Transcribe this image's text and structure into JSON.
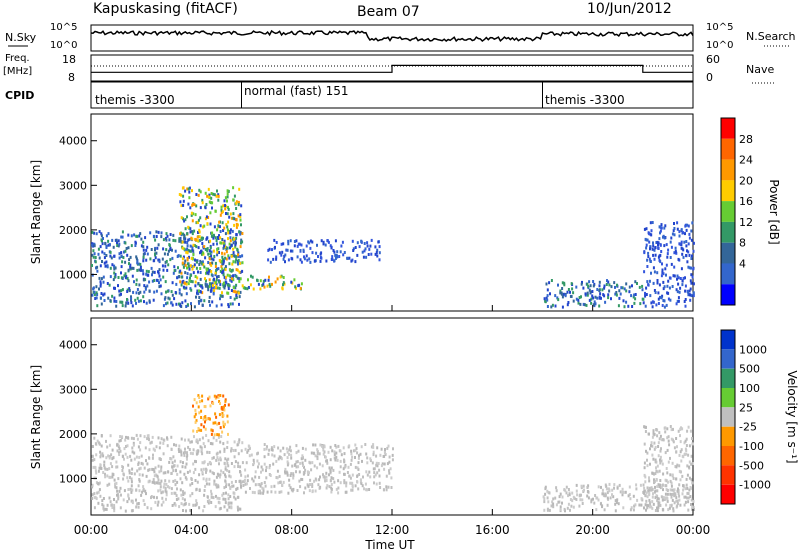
{
  "header": {
    "title": "Kapuskasing (fitACF)",
    "beam": "Beam 07",
    "date": "10/Jun/2012"
  },
  "chart_data": {
    "type": "heatmap",
    "title": "Kapuskasing (fitACF)",
    "xlabel": "Time UT",
    "x_ticks": [
      "00:00",
      "04:00",
      "08:00",
      "12:00",
      "16:00",
      "20:00",
      "00:00"
    ],
    "xlim_hours": [
      0,
      24
    ],
    "panels": [
      {
        "name": "noise",
        "left_label": "N.Sky",
        "right_label": "N.Search",
        "left_ticks": [
          "10^5",
          "10^0"
        ],
        "right_ticks": [
          "10^5",
          "10^0"
        ]
      },
      {
        "name": "freq_nave",
        "left_label_top": "Freq.",
        "left_label_bottom": "[MHz]",
        "right_label": "Nave",
        "left_ticks": [
          "18",
          "8"
        ],
        "right_ticks": [
          "60",
          "0"
        ],
        "nave_steps": [
          {
            "start_hour": 0,
            "end_hour": 6,
            "value": 20
          },
          {
            "start_hour": 6,
            "end_hour": 12,
            "value": 20
          },
          {
            "start_hour": 12,
            "end_hour": 22,
            "value": 36
          },
          {
            "start_hour": 22,
            "end_hour": 24,
            "value": 20
          }
        ]
      },
      {
        "name": "cpid",
        "label": "CPID",
        "segments": [
          {
            "start_hour": 0,
            "end_hour": 6,
            "label": "themis -3300"
          },
          {
            "start_hour": 6,
            "end_hour": 18,
            "label": "normal (fast) 151"
          },
          {
            "start_hour": 18,
            "end_hour": 24,
            "label": "themis -3300"
          }
        ]
      },
      {
        "name": "power",
        "ylabel": "Slant Range [km]",
        "ylim": [
          180,
          4600
        ],
        "y_ticks": [
          1000,
          2000,
          3000,
          4000
        ],
        "colorbar_label": "Power [dB]",
        "colorbar_ticks": [
          "28",
          "24",
          "20",
          "16",
          "12",
          "8",
          "4"
        ],
        "colorbar_colors": [
          "#ff0000",
          "#ff6600",
          "#ff9900",
          "#ffcc00",
          "#66cc33",
          "#339966",
          "#336699",
          "#3366cc",
          "#0000ff"
        ]
      },
      {
        "name": "velocity",
        "ylabel": "Slant Range [km]",
        "ylim": [
          180,
          4600
        ],
        "y_ticks": [
          1000,
          2000,
          3000,
          4000
        ],
        "colorbar_label": "Velocity [m s⁻¹]",
        "colorbar_ticks": [
          "1000",
          "500",
          "100",
          "25",
          "-25",
          "-100",
          "-500",
          "-1000"
        ],
        "colorbar_colors": [
          "#0033cc",
          "#3366cc",
          "#339966",
          "#66cc33",
          "#c0c0c0",
          "#ff9900",
          "#ff6600",
          "#ff3300",
          "#ff0000"
        ]
      }
    ],
    "scatter_regions": [
      {
        "panel": "power",
        "start_hour": 0,
        "end_hour": 6,
        "range_min": 300,
        "range_max": 2000,
        "level": "medium"
      },
      {
        "panel": "power",
        "start_hour": 3.5,
        "end_hour": 6,
        "range_min": 600,
        "range_max": 3000,
        "level": "high"
      },
      {
        "panel": "power",
        "start_hour": 6,
        "end_hour": 8.5,
        "range_min": 700,
        "range_max": 1000,
        "level": "high"
      },
      {
        "panel": "power",
        "start_hour": 7,
        "end_hour": 11.5,
        "range_min": 1300,
        "range_max": 1800,
        "level": "low"
      },
      {
        "panel": "power",
        "start_hour": 18,
        "end_hour": 22,
        "range_min": 300,
        "range_max": 900,
        "level": "medium"
      },
      {
        "panel": "power",
        "start_hour": 22,
        "end_hour": 24,
        "range_min": 300,
        "range_max": 2200,
        "level": "low"
      },
      {
        "panel": "velocity",
        "start_hour": 0,
        "end_hour": 6,
        "range_min": 300,
        "range_max": 2000,
        "level": "neutral"
      },
      {
        "panel": "velocity",
        "start_hour": 4,
        "end_hour": 5.5,
        "range_min": 2000,
        "range_max": 2900,
        "level": "negative"
      },
      {
        "panel": "velocity",
        "start_hour": 6,
        "end_hour": 12,
        "range_min": 700,
        "range_max": 1800,
        "level": "neutral"
      },
      {
        "panel": "velocity",
        "start_hour": 18,
        "end_hour": 24,
        "range_min": 300,
        "range_max": 900,
        "level": "neutral"
      },
      {
        "panel": "velocity",
        "start_hour": 22,
        "end_hour": 24,
        "range_min": 300,
        "range_max": 2200,
        "level": "neutral"
      }
    ]
  }
}
